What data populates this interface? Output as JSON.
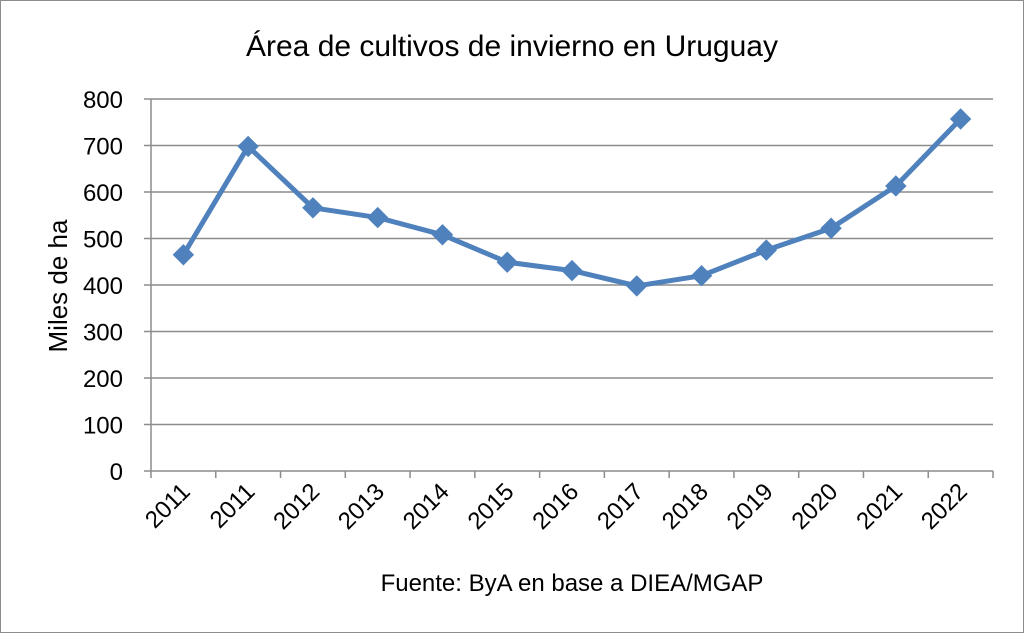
{
  "chart_data": {
    "type": "line",
    "title": "Área de cultivos  de invierno en Uruguay",
    "xlabel": "",
    "ylabel": "Miles de ha",
    "categories": [
      "2011",
      "2011",
      "2012",
      "2013",
      "2014",
      "2015",
      "2016",
      "2017",
      "2018",
      "2019",
      "2020",
      "2021",
      "2022"
    ],
    "series": [
      {
        "name": "Área de cultivos de invierno",
        "values": [
          465,
          698,
          566,
          545,
          508,
          449,
          431,
          398,
          420,
          475,
          522,
          613,
          757
        ],
        "color": "#4F81BD"
      }
    ],
    "ylim": [
      0,
      800
    ],
    "yticks": [
      "0",
      "100",
      "200",
      "300",
      "400",
      "500",
      "600",
      "700",
      "800"
    ],
    "grid": true,
    "legend": "none",
    "source_note": "Fuente: ByA en base a DIEA/MGAP"
  },
  "colors": {
    "series": "#4F81BD",
    "grid": "#8c8c8c",
    "axis": "#8c8c8c",
    "frame_border": "#8c8c8c"
  }
}
